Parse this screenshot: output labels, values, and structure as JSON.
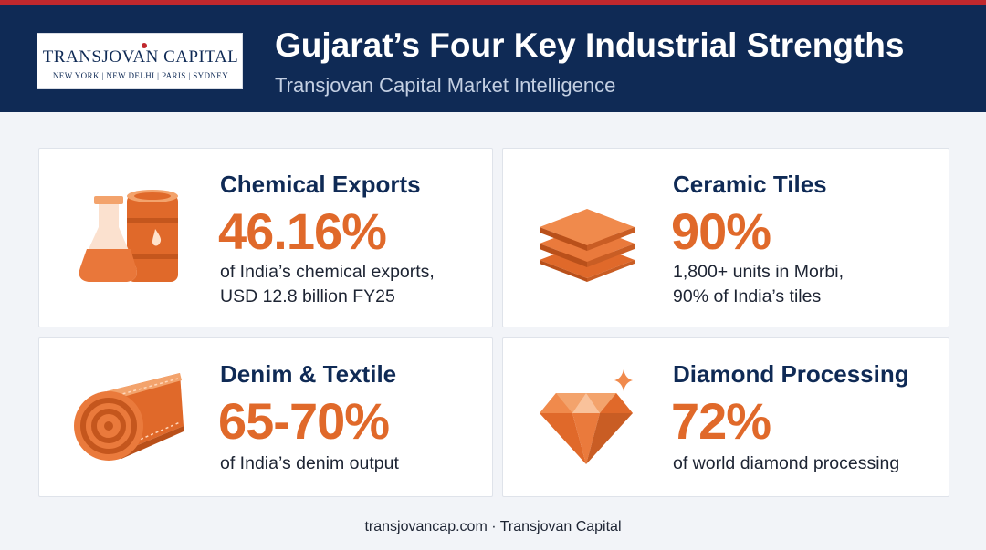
{
  "header": {
    "title": "Gujarat’s Four Key Industrial Strengths",
    "subtitle": "Transjovan Capital Market Intelligence",
    "logo_name": "TRANSJOVAN CAPITAL",
    "logo_cities": "NEW YORK | NEW DELHI | PARIS | SYDNEY"
  },
  "cards": [
    {
      "title": "Chemical Exports",
      "value": "46.16%",
      "desc_line1": "of India’s chemical exports,",
      "desc_line2": "USD 12.8 billion FY25",
      "icon": "flask-and-barrel-icon"
    },
    {
      "title": "Ceramic Tiles",
      "value": "90%",
      "desc_line1": "1,800+ units in Morbi,",
      "desc_line2": "90% of India’s tiles",
      "icon": "tile-stack-icon"
    },
    {
      "title": "Denim & Textile",
      "value": "65-70%",
      "desc_line1": "of India’s denim output",
      "icon": "fabric-roll-icon"
    },
    {
      "title": "Diamond Processing",
      "value": "72%",
      "desc_line1": "of world diamond processing",
      "icon": "diamond-icon"
    }
  ],
  "colors": {
    "navy": "#0f2a55",
    "accent_orange": "#e0692a",
    "red": "#c0282d"
  },
  "footer": {
    "text": "transjovancap.com · Transjovan Capital"
  }
}
